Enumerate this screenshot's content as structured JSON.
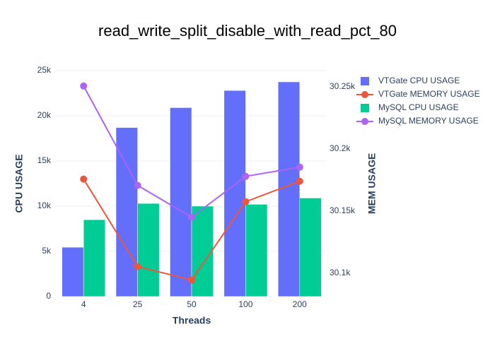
{
  "chart_data": {
    "type": "bar",
    "title": "read_write_split_disable_with_read_pct_80",
    "x_label": "Threads",
    "y_label": "CPU USAGE",
    "y2_label": "MEM USAGE",
    "categories": [
      "4",
      "25",
      "50",
      "100",
      "200"
    ],
    "series": [
      {
        "name": "VTGate CPU USAGE",
        "type": "bar",
        "color": "#636efa",
        "values": [
          5450,
          18700,
          20900,
          22800,
          23750
        ]
      },
      {
        "name": "VTGate MEMORY USAGE",
        "type": "line",
        "axis": "y2",
        "color": "#ef553b",
        "values": [
          30175.6,
          30105.1,
          30094.3,
          30157.4,
          30173.9
        ]
      },
      {
        "name": "MySQL CPU USAGE",
        "type": "bar",
        "color": "#00cc96",
        "values": [
          8500,
          10300,
          10000,
          10200,
          10900
        ]
      },
      {
        "name": "MySQL MEMORY USAGE",
        "type": "line",
        "axis": "y2",
        "color": "#ab63fa",
        "values": [
          30250.6,
          30170.5,
          30144.9,
          30177.8,
          30185.2
        ]
      }
    ],
    "ylim": [
      0,
      25000
    ],
    "yticks": [
      0,
      {
        "value": 5000,
        "label": "5k"
      },
      {
        "value": 10000,
        "label": "10k"
      },
      {
        "value": 15000,
        "label": "15k"
      },
      {
        "value": 20000,
        "label": "20k"
      },
      {
        "value": 25000,
        "label": "25k"
      }
    ],
    "y2lim": [
      30081,
      30263
    ],
    "y2ticks": [
      {
        "value": 30100,
        "label": "30.1k"
      },
      {
        "value": 30150,
        "label": "30.15k"
      },
      {
        "value": 30200,
        "label": "30.2k"
      },
      {
        "value": 30250,
        "label": "30.25k"
      }
    ],
    "grid": true,
    "legend": "top-right"
  }
}
